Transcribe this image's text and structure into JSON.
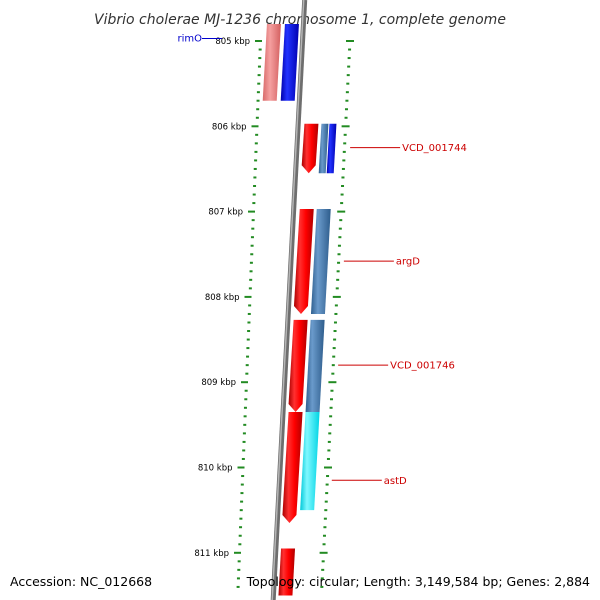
{
  "header": {
    "title": "Vibrio cholerae MJ-1236 chromosome 1, complete genome"
  },
  "footer": {
    "accession": "Accession: NC_012668",
    "summary": "Topology: circular; Length: 3,149,584 bp; Genes: 2,884"
  },
  "colors": {
    "backbone": "#888888",
    "tick": "#228b22",
    "forward_cds": "#ff0000",
    "forward_cds_light": "#f08080",
    "reverse_gene": "#0000ff",
    "reverse_cds": "#4682b4",
    "highlight": "#00ffff",
    "label_red": "#cc0000",
    "label_blue": "#0000cc"
  },
  "map": {
    "visible_range_kbp": [
      804.85,
      811.45
    ],
    "major_ticks": [
      {
        "kbp": 805,
        "label": "805 kbp"
      },
      {
        "kbp": 806,
        "label": "806 kbp"
      },
      {
        "kbp": 807,
        "label": "807 kbp"
      },
      {
        "kbp": 808,
        "label": "808 kbp"
      },
      {
        "kbp": 809,
        "label": "809 kbp"
      },
      {
        "kbp": 810,
        "label": "810 kbp"
      },
      {
        "kbp": 811,
        "label": "811 kbp"
      }
    ],
    "features": [
      {
        "name": "rimO-forward",
        "track": "outer",
        "start_kbp": 804.8,
        "end_kbp": 805.7,
        "color_key": "forward_cds_light",
        "arrow": false
      },
      {
        "name": "rimO-reverse",
        "track": "inner",
        "start_kbp": 804.8,
        "end_kbp": 805.7,
        "color_key": "reverse_gene",
        "arrow": false
      },
      {
        "name": "VCD_001744-forward",
        "track": "outer",
        "start_kbp": 805.97,
        "end_kbp": 806.55,
        "color_key": "forward_cds",
        "arrow": true
      },
      {
        "name": "VCD_001744-reverse-a",
        "track": "inner-a",
        "start_kbp": 805.97,
        "end_kbp": 806.55,
        "color_key": "reverse_cds",
        "arrow": false
      },
      {
        "name": "VCD_001744-reverse-b",
        "track": "inner-b",
        "start_kbp": 805.97,
        "end_kbp": 806.55,
        "color_key": "reverse_gene",
        "arrow": false
      },
      {
        "name": "argD-forward",
        "track": "outer",
        "start_kbp": 806.97,
        "end_kbp": 808.2,
        "color_key": "forward_cds",
        "arrow": true
      },
      {
        "name": "argD-reverse",
        "track": "inner",
        "start_kbp": 806.97,
        "end_kbp": 808.2,
        "color_key": "reverse_cds",
        "arrow": false
      },
      {
        "name": "VCD_001746-forward",
        "track": "outer",
        "start_kbp": 808.27,
        "end_kbp": 809.35,
        "color_key": "forward_cds",
        "arrow": true
      },
      {
        "name": "VCD_001746-reverse",
        "track": "inner",
        "start_kbp": 808.27,
        "end_kbp": 809.35,
        "color_key": "reverse_cds",
        "arrow": false
      },
      {
        "name": "astD-forward",
        "track": "outer",
        "start_kbp": 809.35,
        "end_kbp": 810.65,
        "color_key": "forward_cds",
        "arrow": true
      },
      {
        "name": "astD-reverse",
        "track": "inner",
        "start_kbp": 809.35,
        "end_kbp": 810.5,
        "color_key": "highlight",
        "arrow": false
      },
      {
        "name": "next-forward",
        "track": "outer",
        "start_kbp": 810.95,
        "end_kbp": 811.5,
        "color_key": "forward_cds",
        "arrow": false
      }
    ],
    "labels": [
      {
        "text": "rimO",
        "kbp": 804.97,
        "color_key": "label_blue",
        "side": "left"
      },
      {
        "text": "VCD_001744",
        "kbp": 806.25,
        "color_key": "label_red",
        "side": "right"
      },
      {
        "text": "argD",
        "kbp": 807.58,
        "color_key": "label_red",
        "side": "right"
      },
      {
        "text": "VCD_001746",
        "kbp": 808.8,
        "color_key": "label_red",
        "side": "right"
      },
      {
        "text": "astD",
        "kbp": 810.15,
        "color_key": "label_red",
        "side": "right"
      }
    ]
  }
}
